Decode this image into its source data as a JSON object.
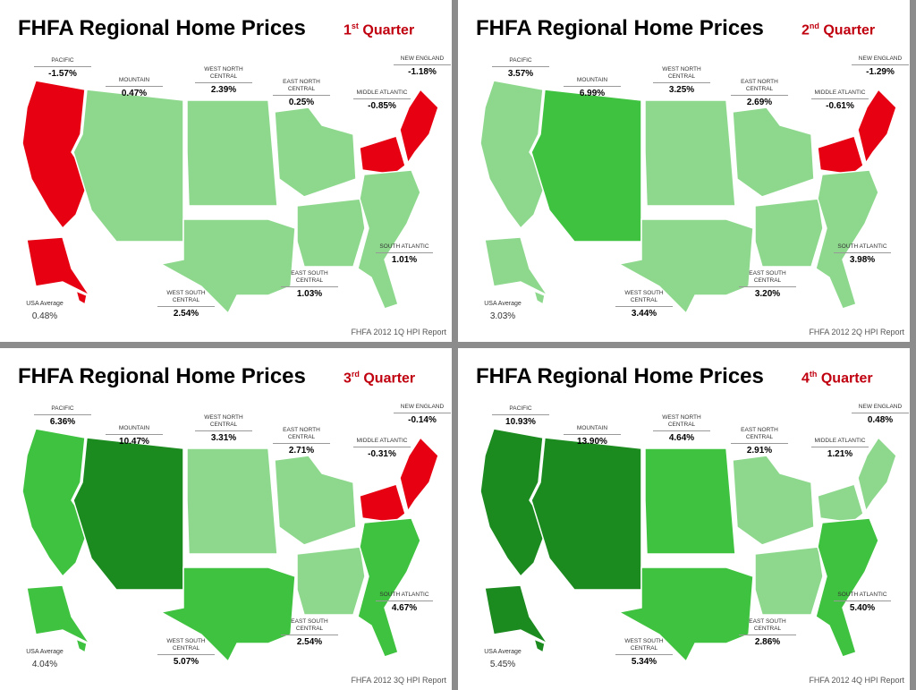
{
  "panels": [
    {
      "title": "FHFA Regional Home Prices",
      "quarter": {
        "number": "1",
        "suffix": "st",
        "word": "Quarter"
      },
      "regions": [
        {
          "name": "PACIFIC",
          "value": "-1.57%",
          "color": "#e60012"
        },
        {
          "name": "MOUNTAIN",
          "value": "0.47%",
          "color": "#8ed88e"
        },
        {
          "name": "WEST NORTH CENTRAL",
          "value": "2.39%",
          "color": "#8ed88e"
        },
        {
          "name": "EAST NORTH CENTRAL",
          "value": "0.25%",
          "color": "#8ed88e"
        },
        {
          "name": "MIDDLE ATLANTIC",
          "value": "-0.85%",
          "color": "#e60012"
        },
        {
          "name": "NEW ENGLAND",
          "value": "-1.18%",
          "color": "#e60012"
        },
        {
          "name": "WEST SOUTH CENTRAL",
          "value": "2.54%",
          "color": "#8ed88e"
        },
        {
          "name": "EAST SOUTH CENTRAL",
          "value": "1.03%",
          "color": "#8ed88e"
        },
        {
          "name": "SOUTH ATLANTIC",
          "value": "1.01%",
          "color": "#8ed88e"
        }
      ],
      "average": {
        "label": "USA Average",
        "value": "0.48%"
      },
      "source": "FHFA 2012 1Q HPI Report"
    },
    {
      "title": "FHFA Regional Home Prices",
      "quarter": {
        "number": "2",
        "suffix": "nd",
        "word": "Quarter"
      },
      "regions": [
        {
          "name": "PACIFIC",
          "value": "3.57%",
          "color": "#8ed88e"
        },
        {
          "name": "MOUNTAIN",
          "value": "6.99%",
          "color": "#3fc23f"
        },
        {
          "name": "WEST NORTH CENTRAL",
          "value": "3.25%",
          "color": "#8ed88e"
        },
        {
          "name": "EAST NORTH CENTRAL",
          "value": "2.69%",
          "color": "#8ed88e"
        },
        {
          "name": "MIDDLE ATLANTIC",
          "value": "-0.61%",
          "color": "#e60012"
        },
        {
          "name": "NEW ENGLAND",
          "value": "-1.29%",
          "color": "#e60012"
        },
        {
          "name": "WEST SOUTH CENTRAL",
          "value": "3.44%",
          "color": "#8ed88e"
        },
        {
          "name": "EAST SOUTH CENTRAL",
          "value": "3.20%",
          "color": "#8ed88e"
        },
        {
          "name": "SOUTH ATLANTIC",
          "value": "3.98%",
          "color": "#8ed88e"
        }
      ],
      "average": {
        "label": "USA Average",
        "value": "3.03%"
      },
      "source": "FHFA 2012 2Q HPI Report"
    },
    {
      "title": "FHFA Regional Home Prices",
      "quarter": {
        "number": "3",
        "suffix": "rd",
        "word": "Quarter"
      },
      "regions": [
        {
          "name": "PACIFIC",
          "value": "6.36%",
          "color": "#3fc23f"
        },
        {
          "name": "MOUNTAIN",
          "value": "10.47%",
          "color": "#1b8a1f"
        },
        {
          "name": "WEST NORTH CENTRAL",
          "value": "3.31%",
          "color": "#8ed88e"
        },
        {
          "name": "EAST NORTH CENTRAL",
          "value": "2.71%",
          "color": "#8ed88e"
        },
        {
          "name": "MIDDLE ATLANTIC",
          "value": "-0.31%",
          "color": "#e60012"
        },
        {
          "name": "NEW ENGLAND",
          "value": "-0.14%",
          "color": "#e60012"
        },
        {
          "name": "WEST SOUTH CENTRAL",
          "value": "5.07%",
          "color": "#3fc23f"
        },
        {
          "name": "EAST SOUTH CENTRAL",
          "value": "2.54%",
          "color": "#8ed88e"
        },
        {
          "name": "SOUTH ATLANTIC",
          "value": "4.67%",
          "color": "#3fc23f"
        }
      ],
      "average": {
        "label": "USA Average",
        "value": "4.04%"
      },
      "source": "FHFA 2012 3Q HPI Report"
    },
    {
      "title": "FHFA Regional Home Prices",
      "quarter": {
        "number": "4",
        "suffix": "th",
        "word": "Quarter"
      },
      "regions": [
        {
          "name": "PACIFIC",
          "value": "10.93%",
          "color": "#1b8a1f"
        },
        {
          "name": "MOUNTAIN",
          "value": "13.90%",
          "color": "#1b8a1f"
        },
        {
          "name": "WEST NORTH CENTRAL",
          "value": "4.64%",
          "color": "#3fc23f"
        },
        {
          "name": "EAST NORTH CENTRAL",
          "value": "2.91%",
          "color": "#8ed88e"
        },
        {
          "name": "MIDDLE ATLANTIC",
          "value": "1.21%",
          "color": "#8ed88e"
        },
        {
          "name": "NEW ENGLAND",
          "value": "0.48%",
          "color": "#8ed88e"
        },
        {
          "name": "WEST SOUTH CENTRAL",
          "value": "5.34%",
          "color": "#3fc23f"
        },
        {
          "name": "EAST SOUTH CENTRAL",
          "value": "2.86%",
          "color": "#8ed88e"
        },
        {
          "name": "SOUTH ATLANTIC",
          "value": "5.40%",
          "color": "#3fc23f"
        }
      ],
      "average": {
        "label": "USA Average",
        "value": "5.45%"
      },
      "source": "FHFA 2012 4Q HPI Report"
    }
  ]
}
